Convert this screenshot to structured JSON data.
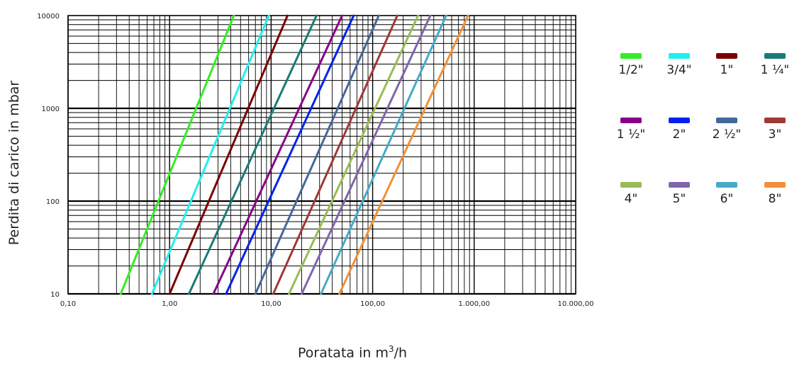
{
  "chart_data": {
    "type": "line",
    "xlabel_text": "Poratata in m",
    "xlabel_unit_sup": "3",
    "xlabel_suffix": "/h",
    "ylabel": "Perdita di carico in mbar",
    "x_scale": "log",
    "y_scale": "log",
    "xlim": [
      0.1,
      10000
    ],
    "ylim": [
      10,
      10000
    ],
    "x_ticks": [
      0.1,
      1,
      10,
      100,
      1000,
      10000
    ],
    "x_tick_labels": [
      "0,10",
      "1,00",
      "10,00",
      "100,00",
      "1.000,00",
      "10.000,00"
    ],
    "y_ticks": [
      10,
      100,
      1000,
      10000
    ],
    "y_tick_labels": [
      "10",
      "100",
      "1000",
      "10000"
    ],
    "grid": true,
    "legend_position": "right",
    "series": [
      {
        "name": "1/2\"",
        "color": "#33ee22",
        "x": [
          0.33,
          4.3
        ],
        "y": [
          10,
          10000
        ]
      },
      {
        "name": "3/4\"",
        "color": "#22eeee",
        "x": [
          0.67,
          9.5
        ],
        "y": [
          10,
          10000
        ]
      },
      {
        "name": "1\"",
        "color": "#7a0000",
        "x": [
          1.0,
          14.5
        ],
        "y": [
          10,
          10000
        ]
      },
      {
        "name": "1 ¼\"",
        "color": "#1a7a77",
        "x": [
          1.55,
          28
        ],
        "y": [
          10,
          10000
        ]
      },
      {
        "name": "1 ½\"",
        "color": "#880088",
        "x": [
          2.7,
          50
        ],
        "y": [
          10,
          10000
        ]
      },
      {
        "name": "2\"",
        "color": "#0022ee",
        "x": [
          3.6,
          65
        ],
        "y": [
          10,
          10000
        ]
      },
      {
        "name": "2 ½\"",
        "color": "#44689a",
        "x": [
          7.0,
          115
        ],
        "y": [
          10,
          10000
        ]
      },
      {
        "name": "3\"",
        "color": "#a03838",
        "x": [
          10.5,
          175
        ],
        "y": [
          10,
          10000
        ]
      },
      {
        "name": "4\"",
        "color": "#99bb55",
        "x": [
          15,
          280
        ],
        "y": [
          10,
          10000
        ]
      },
      {
        "name": "5\"",
        "color": "#8066aa",
        "x": [
          20,
          370
        ],
        "y": [
          10,
          10000
        ]
      },
      {
        "name": "6\"",
        "color": "#44aac8",
        "x": [
          31,
          530
        ],
        "y": [
          10,
          10000
        ]
      },
      {
        "name": "8\"",
        "color": "#f0903a",
        "x": [
          47,
          870
        ],
        "y": [
          10,
          10000
        ]
      }
    ]
  }
}
